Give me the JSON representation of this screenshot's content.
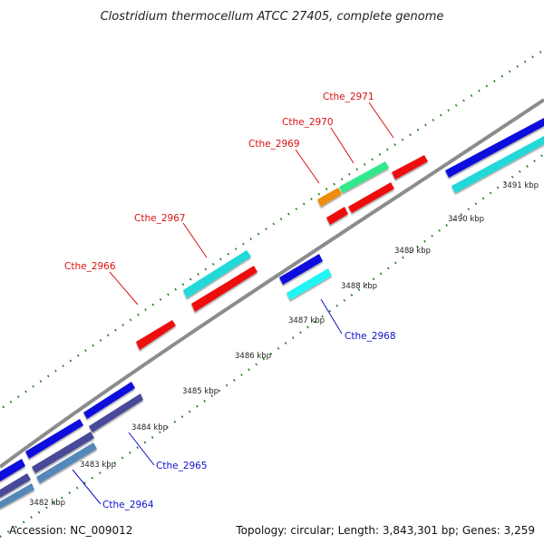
{
  "title": "Clostridium thermocellum ATCC 27405, complete genome",
  "footer": {
    "accession": "Accession: NC_009012",
    "topology": "Topology: circular; Length: 3,843,301 bp; Genes: 3,259"
  },
  "colors": {
    "backbone": "#8c8c8c",
    "tick": "#1c7a1c",
    "label_forward": "#dd1111",
    "label_reverse": "#1111cc",
    "red": "#ee1111",
    "cyan": "#22d8d8",
    "light_cyan": "#22f4f4",
    "blue": "#1111dd",
    "mint": "#33e88c",
    "orange": "#ee8c11",
    "navy": "#4a4a99",
    "steel": "#5588b8"
  },
  "kbp_labels": [
    "3482 kbp",
    "3483 kbp",
    "3484 kbp",
    "3485 kbp",
    "3486 kbp",
    "3487 kbp",
    "3488 kbp",
    "3489 kbp",
    "3490 kbp",
    "3491 kbp"
  ],
  "gene_labels": [
    "Cthe_2966",
    "Cthe_2967",
    "Cthe_2969",
    "Cthe_2970",
    "Cthe_2971",
    "Cthe_2968",
    "Cthe_2965",
    "Cthe_2964"
  ]
}
